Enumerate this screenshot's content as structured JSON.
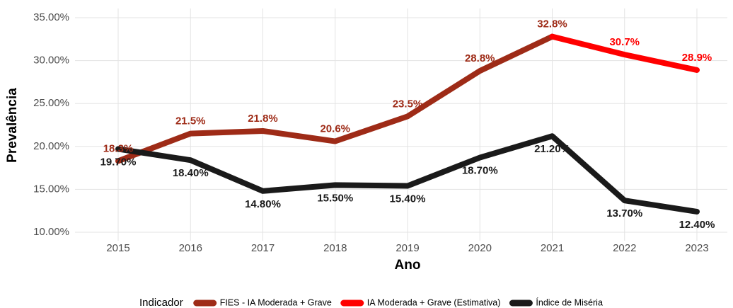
{
  "chart_data": {
    "type": "line",
    "x_label": "Ano",
    "y_label": "Prevalência",
    "legend_title": "Indicador",
    "legend": "bottom",
    "grid": true,
    "x": [
      2015,
      2016,
      2017,
      2018,
      2019,
      2020,
      2021,
      2022,
      2023
    ],
    "xlim": [
      2015,
      2023
    ],
    "xticks": [
      2015,
      2016,
      2017,
      2018,
      2019,
      2020,
      2021,
      2022,
      2023
    ],
    "ylim": [
      10,
      35
    ],
    "yticks": [
      {
        "value": 10,
        "label": "10.00%"
      },
      {
        "value": 15,
        "label": "15.00%"
      },
      {
        "value": 20,
        "label": "20.00%"
      },
      {
        "value": 25,
        "label": "25.00%"
      },
      {
        "value": 30,
        "label": "30.00%"
      },
      {
        "value": 35,
        "label": "35.00%"
      }
    ],
    "series": [
      {
        "name": "FIES - IA Moderada + Grave",
        "color": "#9e2b17",
        "label_side": "above",
        "values": [
          18.3,
          21.5,
          21.8,
          20.6,
          23.5,
          28.8,
          32.8,
          null,
          null
        ],
        "value_labels": [
          "18.3%",
          "21.5%",
          "21.8%",
          "20.6%",
          "23.5%",
          "28.8%",
          "32.8%",
          null,
          null
        ]
      },
      {
        "name": "IA Moderada + Grave (Estimativa)",
        "color": "#ff0000",
        "label_side": "above",
        "values": [
          null,
          null,
          null,
          null,
          null,
          null,
          32.8,
          30.7,
          28.9
        ],
        "value_labels": [
          null,
          null,
          null,
          null,
          null,
          null,
          null,
          "30.7%",
          "28.9%"
        ]
      },
      {
        "name": "Índice de Miséria",
        "color": "#1a1a1a",
        "label_side": "below",
        "values": [
          19.7,
          18.4,
          14.8,
          15.5,
          15.4,
          18.7,
          21.2,
          13.7,
          12.4
        ],
        "value_labels": [
          "19.70%",
          "18.40%",
          "14.80%",
          "15.50%",
          "15.40%",
          "18.70%",
          "21.20%",
          "13.70%",
          "12.40%"
        ]
      }
    ]
  }
}
